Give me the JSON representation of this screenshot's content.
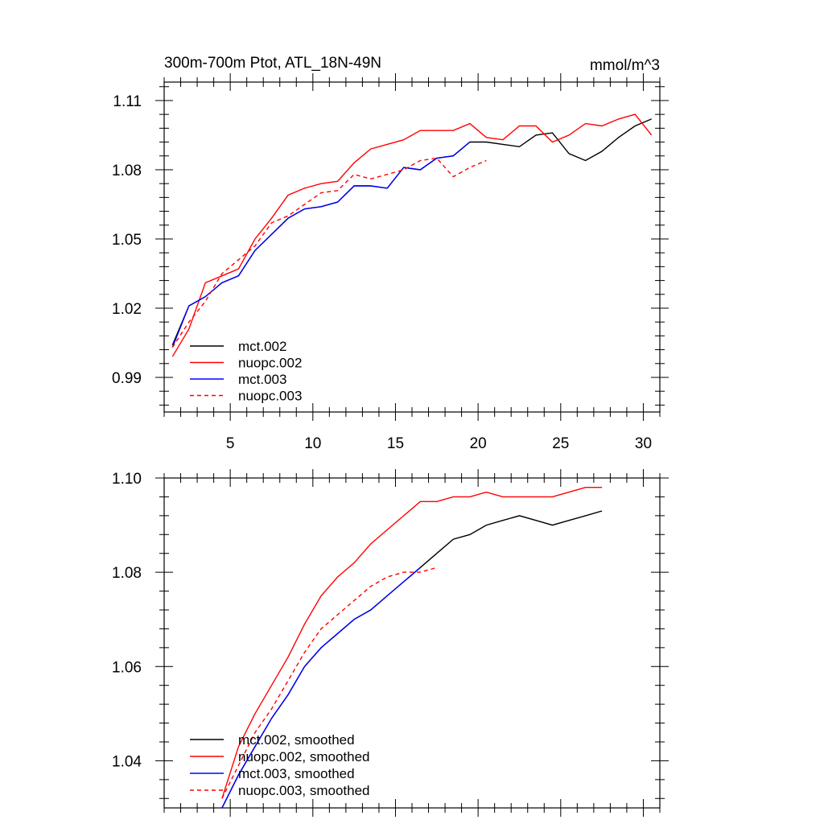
{
  "figure": {
    "title_left": "300m-700m Ptot, ATL_18N-49N",
    "title_right": "mmol/m^3"
  },
  "chart_data": [
    {
      "type": "line",
      "xlim": [
        1,
        31
      ],
      "ylim": [
        0.975,
        1.118
      ],
      "x_ticks": [
        5,
        10,
        15,
        20,
        25,
        30
      ],
      "y_ticks": [
        0.99,
        1.02,
        1.05,
        1.08,
        1.11
      ],
      "y_tick_labels": [
        "0.99",
        "1.02",
        "1.05",
        "1.08",
        "1.11"
      ],
      "x_tick_labels": [
        "5",
        "10",
        "15",
        "20",
        "25",
        "30"
      ],
      "legend_position": "bottom-left",
      "grid": false,
      "series": [
        {
          "name": "mct.002",
          "color": "#000000",
          "dash": "solid",
          "x": [
            1.5,
            2.5,
            3.5,
            4.5,
            5.5,
            6.5,
            7.5,
            8.5,
            9.5,
            10.5,
            11.5,
            12.5,
            13.5,
            14.5,
            15.5,
            16.5,
            17.5,
            18.5,
            19.5,
            20.5,
            21.5,
            22.5,
            23.5,
            24.5,
            25.5,
            26.5,
            27.5,
            28.5,
            29.5,
            30.5
          ],
          "values": [
            1.004,
            1.021,
            1.025,
            1.031,
            1.034,
            1.045,
            1.052,
            1.059,
            1.063,
            1.064,
            1.066,
            1.073,
            1.073,
            1.072,
            1.081,
            1.08,
            1.085,
            1.086,
            1.092,
            1.092,
            1.091,
            1.09,
            1.095,
            1.096,
            1.087,
            1.084,
            1.088,
            1.094,
            1.099,
            1.102
          ]
        },
        {
          "name": "nuopc.002",
          "color": "#ff0000",
          "dash": "solid",
          "x": [
            1.5,
            2.5,
            3.5,
            4.5,
            5.5,
            6.5,
            7.5,
            8.5,
            9.5,
            10.5,
            11.5,
            12.5,
            13.5,
            14.5,
            15.5,
            16.5,
            17.5,
            18.5,
            19.5,
            20.5,
            21.5,
            22.5,
            23.5,
            24.5,
            25.5,
            26.5,
            27.5,
            28.5,
            29.5,
            30.5
          ],
          "values": [
            0.999,
            1.011,
            1.031,
            1.034,
            1.037,
            1.05,
            1.059,
            1.069,
            1.072,
            1.074,
            1.075,
            1.083,
            1.089,
            1.091,
            1.093,
            1.097,
            1.097,
            1.097,
            1.1,
            1.094,
            1.093,
            1.099,
            1.099,
            1.092,
            1.095,
            1.1,
            1.099,
            1.102,
            1.104,
            1.095
          ]
        },
        {
          "name": "mct.003",
          "color": "#0000ff",
          "dash": "solid",
          "x": [
            1.5,
            2.5,
            3.5,
            4.5,
            5.5,
            6.5,
            7.5,
            8.5,
            9.5,
            10.5,
            11.5,
            12.5,
            13.5,
            14.5,
            15.5,
            16.5,
            17.5,
            18.5,
            19.5
          ],
          "values": [
            1.003,
            1.021,
            1.025,
            1.031,
            1.034,
            1.045,
            1.052,
            1.059,
            1.063,
            1.064,
            1.066,
            1.073,
            1.073,
            1.072,
            1.081,
            1.08,
            1.085,
            1.086,
            1.092
          ]
        },
        {
          "name": "nuopc.003",
          "color": "#ff0000",
          "dash": "dashed",
          "x": [
            1.5,
            2.5,
            3.5,
            4.5,
            5.5,
            6.5,
            7.5,
            8.5,
            9.5,
            10.5,
            11.5,
            12.5,
            13.5,
            14.5,
            15.5,
            16.5,
            17.5,
            18.5,
            19.5,
            20.5
          ],
          "values": [
            1.003,
            1.014,
            1.023,
            1.035,
            1.041,
            1.047,
            1.057,
            1.06,
            1.065,
            1.07,
            1.071,
            1.078,
            1.076,
            1.078,
            1.08,
            1.084,
            1.085,
            1.077,
            1.081,
            1.084
          ]
        }
      ]
    },
    {
      "type": "line",
      "xlim": [
        1,
        31
      ],
      "ylim": [
        1.03,
        1.1
      ],
      "x_ticks": [
        5,
        10,
        15,
        20,
        25,
        30
      ],
      "y_ticks": [
        1.04,
        1.06,
        1.08,
        1.1
      ],
      "y_tick_labels": [
        "1.04",
        "1.06",
        "1.08",
        "1.10"
      ],
      "legend_position": "bottom-left",
      "grid": false,
      "series": [
        {
          "name": "mct.002, smoothed",
          "color": "#000000",
          "dash": "solid",
          "x": [
            4.5,
            5.5,
            6.5,
            7.5,
            8.5,
            9.5,
            10.5,
            11.5,
            12.5,
            13.5,
            14.5,
            15.5,
            16.5,
            17.5,
            18.5,
            19.5,
            20.5,
            21.5,
            22.5,
            23.5,
            24.5,
            25.5,
            26.5,
            27.5
          ],
          "values": [
            1.03,
            1.037,
            1.043,
            1.049,
            1.054,
            1.06,
            1.064,
            1.067,
            1.07,
            1.072,
            1.075,
            1.078,
            1.081,
            1.084,
            1.087,
            1.088,
            1.09,
            1.091,
            1.092,
            1.091,
            1.09,
            1.091,
            1.092,
            1.093
          ]
        },
        {
          "name": "nuopc.002, smoothed",
          "color": "#ff0000",
          "dash": "solid",
          "x": [
            4.5,
            5.5,
            6.5,
            7.5,
            8.5,
            9.5,
            10.5,
            11.5,
            12.5,
            13.5,
            14.5,
            15.5,
            16.5,
            17.5,
            18.5,
            19.5,
            20.5,
            21.5,
            22.5,
            23.5,
            24.5,
            25.5,
            26.5,
            27.5
          ],
          "values": [
            1.032,
            1.043,
            1.05,
            1.056,
            1.062,
            1.069,
            1.075,
            1.079,
            1.082,
            1.086,
            1.089,
            1.092,
            1.095,
            1.095,
            1.096,
            1.096,
            1.097,
            1.096,
            1.096,
            1.096,
            1.096,
            1.097,
            1.098,
            1.098
          ]
        },
        {
          "name": "mct.003, smoothed",
          "color": "#0000ff",
          "dash": "solid",
          "x": [
            4.5,
            5.5,
            6.5,
            7.5,
            8.5,
            9.5,
            10.5,
            11.5,
            12.5,
            13.5,
            14.5,
            15.5,
            16.5
          ],
          "values": [
            1.03,
            1.037,
            1.043,
            1.049,
            1.054,
            1.06,
            1.064,
            1.067,
            1.07,
            1.072,
            1.075,
            1.078,
            1.081
          ]
        },
        {
          "name": "nuopc.003, smoothed",
          "color": "#ff0000",
          "dash": "dashed",
          "x": [
            4.5,
            5.5,
            6.5,
            7.5,
            8.5,
            9.5,
            10.5,
            11.5,
            12.5,
            13.5,
            14.5,
            15.5,
            16.5,
            17.5
          ],
          "values": [
            1.032,
            1.039,
            1.046,
            1.051,
            1.057,
            1.063,
            1.068,
            1.071,
            1.074,
            1.077,
            1.079,
            1.08,
            1.08,
            1.081
          ]
        }
      ]
    }
  ]
}
